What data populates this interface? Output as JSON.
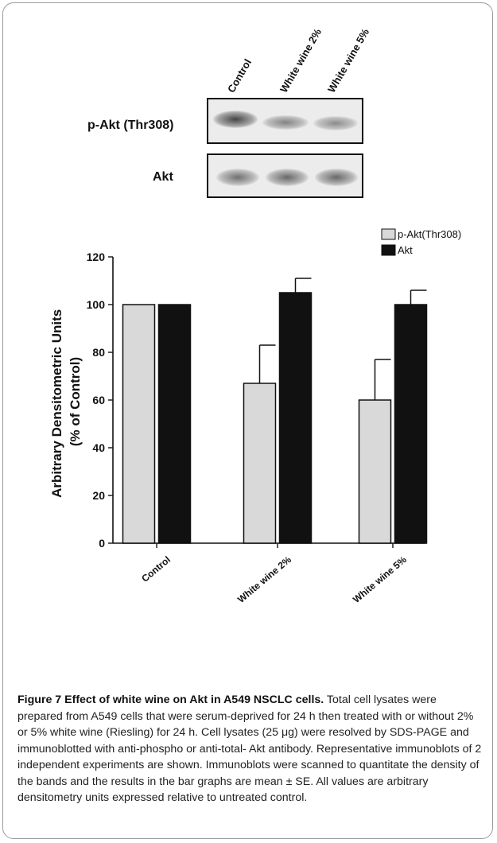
{
  "blot": {
    "lanes": [
      "Control",
      "White wine 2%",
      "White wine 5%"
    ],
    "rows": [
      {
        "label": "p-Akt (Thr308)",
        "band_intensity": [
          0.85,
          0.6,
          0.55
        ]
      },
      {
        "label": "Akt",
        "band_intensity": [
          0.7,
          0.75,
          0.75
        ]
      }
    ]
  },
  "chart_data": {
    "type": "bar",
    "categories": [
      "Control",
      "White wine 2%",
      "White wine 5%"
    ],
    "series": [
      {
        "name": "p-Akt(Thr308)",
        "color": "#d9d9d9",
        "values": [
          100,
          67,
          60
        ],
        "errors": [
          0,
          16,
          17
        ]
      },
      {
        "name": "Akt",
        "color": "#111111",
        "values": [
          100,
          105,
          100
        ],
        "errors": [
          0,
          6,
          6
        ]
      }
    ],
    "title": "",
    "xlabel": "",
    "ylabel": "Arbitrary Densitometric Units\n(% of Control)",
    "ylim": [
      0,
      120
    ],
    "yticks": [
      0,
      20,
      40,
      60,
      80,
      100,
      120
    ],
    "grid": false,
    "legend": "top-right"
  },
  "caption": {
    "title": "Figure 7 Effect of white wine on Akt in A549 NSCLC cells.",
    "text": " Total cell lysates were prepared from A549 cells that were serum-deprived for 24 h then treated with or without 2% or 5% white wine (Riesling) for 24 h. Cell lysates (25 μg) were resolved by SDS-PAGE and immunoblotted with anti-phospho or anti-total- Akt antibody. Representative immunoblots of 2 independent experiments are shown. Immunoblots were scanned to quantitate the density of the bands and the results in the bar graphs are mean ± SE. All values are arbitrary densitometry units expressed relative to untreated control."
  }
}
